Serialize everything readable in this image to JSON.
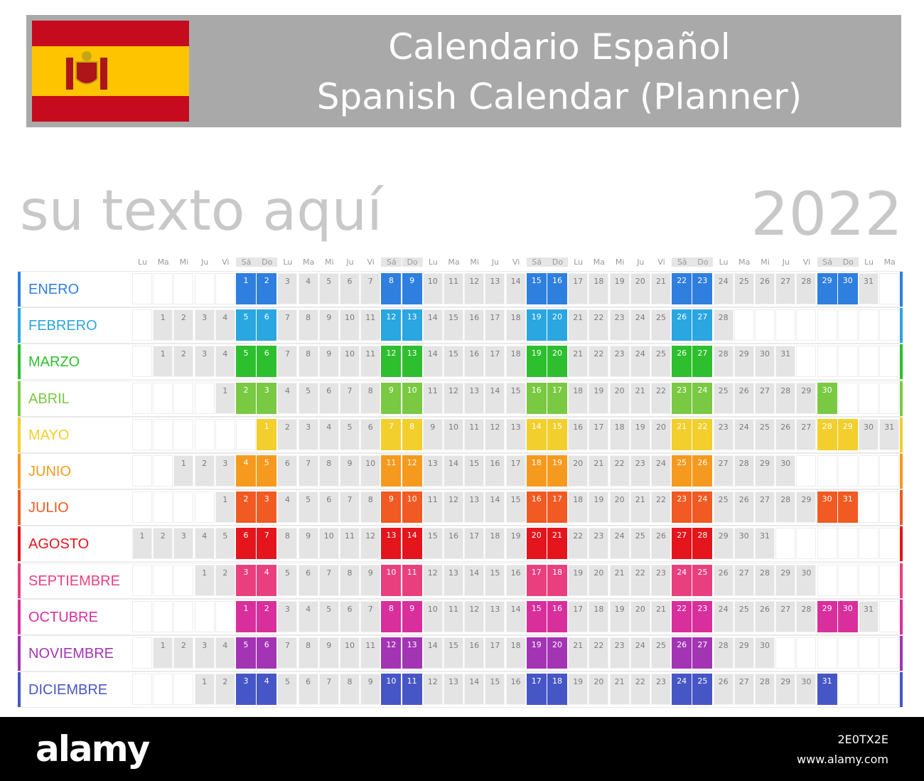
{
  "header": {
    "title_es": "Calendario Español",
    "title_en": "Spanish Calendar (Planner)"
  },
  "custom_text": "su texto aquí",
  "year": "2022",
  "weekday_labels": [
    "Lu",
    "Ma",
    "Mi",
    "Ju",
    "Vi",
    "Sá",
    "Do"
  ],
  "month_colors": [
    "#2f7fdf",
    "#2aa6e0",
    "#2ebf2e",
    "#7ac943",
    "#f2cf2c",
    "#f59a1e",
    "#f15a22",
    "#e4151c",
    "#ea3f7f",
    "#d92f9d",
    "#a334b4",
    "#4756c6"
  ],
  "months": [
    {
      "name": "ENERO",
      "offset": 5,
      "days": 31
    },
    {
      "name": "FEBRERO",
      "offset": 1,
      "days": 28
    },
    {
      "name": "MARZO",
      "offset": 1,
      "days": 31
    },
    {
      "name": "ABRIL",
      "offset": 4,
      "days": 30
    },
    {
      "name": "MAYO",
      "offset": 6,
      "days": 31
    },
    {
      "name": "JUNIO",
      "offset": 2,
      "days": 30
    },
    {
      "name": "JULIO",
      "offset": 4,
      "days": 31
    },
    {
      "name": "AGOSTO",
      "offset": 0,
      "days": 31
    },
    {
      "name": "SEPTIEMBRE",
      "offset": 3,
      "days": 30
    },
    {
      "name": "OCTUBRE",
      "offset": 5,
      "days": 31
    },
    {
      "name": "NOVIEMBRE",
      "offset": 1,
      "days": 30
    },
    {
      "name": "DICIEMBRE",
      "offset": 3,
      "days": 31
    }
  ],
  "stock": {
    "logo": "alamy",
    "image_id": "2E0TX2E",
    "url": "www.alamy.com"
  }
}
